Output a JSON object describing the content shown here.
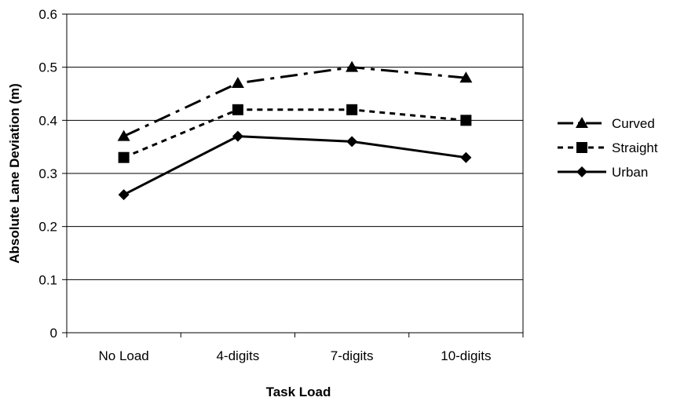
{
  "chart_data": {
    "type": "line",
    "xlabel": "Task Load",
    "ylabel": "Absolute Lane Deviation (m)",
    "categories": [
      "No Load",
      "4-digits",
      "7-digits",
      "10-digits"
    ],
    "ylim": [
      0,
      0.6
    ],
    "yticks": [
      "0",
      "0.1",
      "0.2",
      "0.3",
      "0.4",
      "0.5",
      "0.6"
    ],
    "grid": true,
    "legend_position": "right",
    "series": [
      {
        "name": "Curved",
        "values": [
          0.37,
          0.47,
          0.5,
          0.48
        ],
        "marker": "triangle",
        "dash": "long-dash-dot",
        "color": "#000000"
      },
      {
        "name": "Straight",
        "values": [
          0.33,
          0.42,
          0.42,
          0.4
        ],
        "marker": "square",
        "dash": "short-dash",
        "color": "#000000"
      },
      {
        "name": "Urban",
        "values": [
          0.26,
          0.37,
          0.36,
          0.33
        ],
        "marker": "diamond",
        "dash": "solid",
        "color": "#000000"
      }
    ]
  }
}
